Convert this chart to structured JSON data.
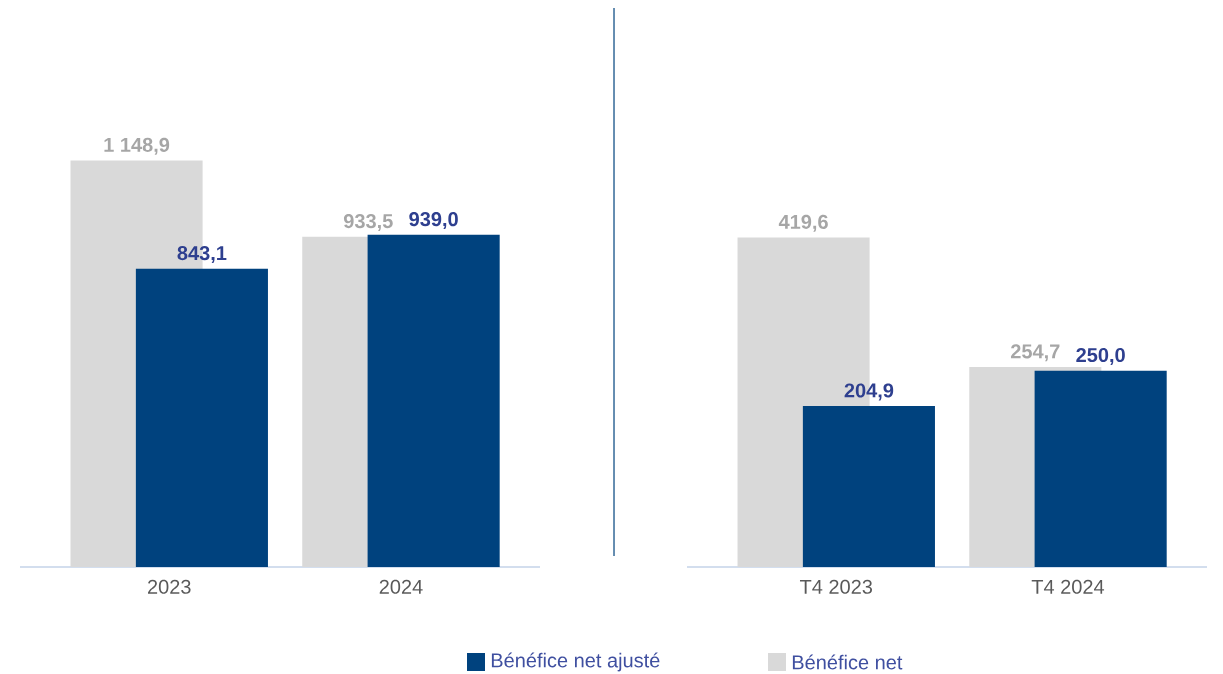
{
  "chart_data": [
    {
      "type": "bar",
      "categories": [
        "2023",
        "2024"
      ],
      "legend": "bottom",
      "series": [
        {
          "name": "Bénéfice net",
          "color": "#d9d9d9",
          "values": [
            1148.9,
            933.5
          ],
          "value_labels": [
            "1 148,9",
            "933,5"
          ]
        },
        {
          "name": "Bénéfice net ajusté",
          "color": "#00427e",
          "values": [
            843.1,
            939.0
          ],
          "value_labels": [
            "843,1",
            "939,0"
          ]
        }
      ]
    },
    {
      "type": "bar",
      "categories": [
        "T4 2023",
        "T4 2024"
      ],
      "series": [
        {
          "color": "#d9d9d9",
          "values": [
            419.6,
            254.7
          ],
          "value_labels": [
            "419,6",
            "254,7"
          ]
        },
        {
          "color": "#00427e",
          "values": [
            204.9,
            250.0
          ],
          "value_labels": [
            "204,9",
            "250,0"
          ]
        }
      ]
    }
  ]
}
